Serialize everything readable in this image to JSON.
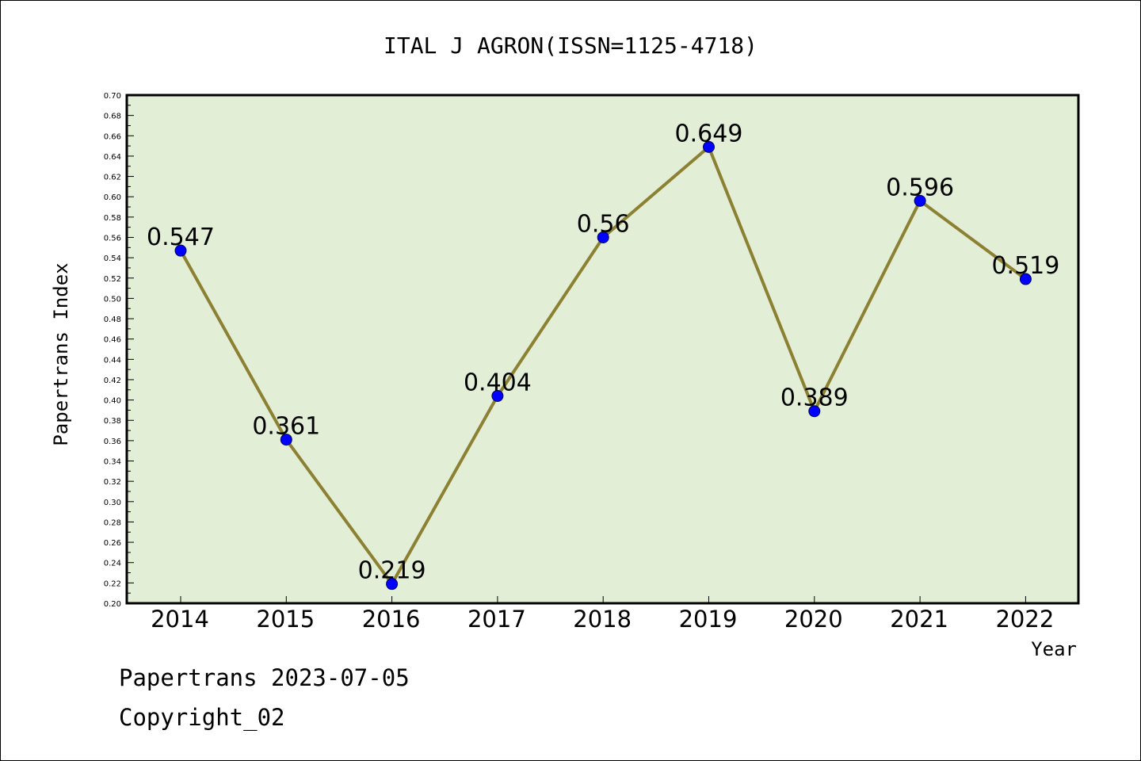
{
  "chart_data": {
    "type": "line",
    "title": "ITAL J AGRON(ISSN=1125-4718)",
    "xlabel": "Year",
    "ylabel": "Papertrans Index",
    "categories": [
      "2014",
      "2015",
      "2016",
      "2017",
      "2018",
      "2019",
      "2020",
      "2021",
      "2022"
    ],
    "values": [
      0.547,
      0.361,
      0.219,
      0.404,
      0.56,
      0.649,
      0.389,
      0.596,
      0.519
    ],
    "data_labels": [
      "0.547",
      "0.361",
      "0.219",
      "0.404",
      "0.56",
      "0.649",
      "0.389",
      "0.596",
      "0.519"
    ],
    "ylim": [
      0.2,
      0.7
    ],
    "ytick_step": 0.02,
    "grid": false,
    "legend": "none",
    "colors": {
      "plot_background": "#e2efd6",
      "line": "#8c8033",
      "marker": "#0000ff",
      "marker_edge": "#000060"
    }
  },
  "footer": {
    "line1": "Papertrans 2023-07-05",
    "line2": "Copyright_02"
  }
}
